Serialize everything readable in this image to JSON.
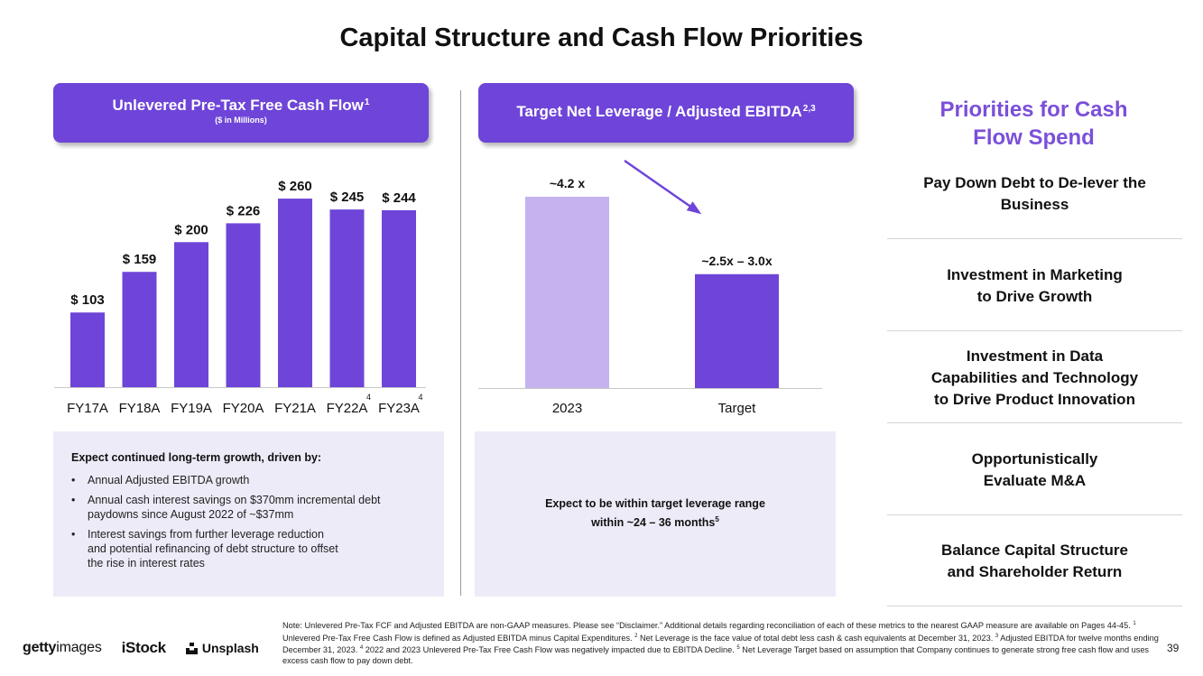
{
  "title": "Capital Structure and Cash Flow Priorities",
  "fcf_panel": {
    "header": "Unlevered Pre-Tax Free Cash Flow",
    "header_sup": "1",
    "subheader": "($ in Millions)"
  },
  "leverage_panel": {
    "header": "Target Net Leverage / Adjusted EBITDA",
    "header_sup": "2,3"
  },
  "chart_data": [
    {
      "type": "bar",
      "title": "Unlevered Pre-Tax Free Cash Flow",
      "subtitle": "($ in Millions)",
      "categories": [
        "FY17A",
        "FY18A",
        "FY19A",
        "FY20A",
        "FY21A",
        "FY22A",
        "FY23A"
      ],
      "category_superscripts": [
        "",
        "",
        "",
        "",
        "",
        "4",
        "4"
      ],
      "values": [
        103,
        159,
        200,
        226,
        260,
        245,
        244
      ],
      "data_labels": [
        "$ 103",
        "$ 159",
        "$ 200",
        "$ 226",
        "$ 260",
        "$ 245",
        "$ 244"
      ],
      "ylim": [
        0,
        280
      ],
      "color": "#6e45d8",
      "grid": false
    },
    {
      "type": "bar",
      "title": "Target Net Leverage / Adjusted EBITDA",
      "categories": [
        "2023",
        "Target"
      ],
      "values": [
        4.2,
        2.5
      ],
      "data_labels": [
        "~4.2 x",
        "~2.5x – 3.0x"
      ],
      "ylim": [
        0,
        5.15
      ],
      "colors": [
        "#c4b3ef",
        "#6e45d8"
      ],
      "arrow": "down from 2023 to Target",
      "arrow_color": "#6e45d8",
      "grid": false
    }
  ],
  "growth_box": {
    "title": "Expect continued long-term growth, driven by:",
    "bullet_glyph": "•",
    "items": [
      "Annual Adjusted EBITDA  growth",
      "Annual cash interest savings on $370mm incremental debt\npaydowns since August 2022 of ~$37mm",
      "Interest savings from further leverage reduction\nand potential refinancing of debt structure to offset\nthe rise in interest rates"
    ]
  },
  "leverage_box": {
    "text": "Expect to be within target leverage range\nwithin ~24 – 36 months",
    "sup": "5"
  },
  "priorities": {
    "title": "Priorities for Cash\nFlow Spend",
    "title_color": "#7b4fd9",
    "items": [
      "Pay Down Debt to De-lever the\nBusiness",
      "Investment in Marketing\nto Drive Growth",
      "Investment in Data\nCapabilities and Technology\nto Drive Product Innovation",
      "Opportunistically\nEvaluate M&A",
      "Balance Capital Structure\nand Shareholder Return"
    ]
  },
  "footer": {
    "logo_getty_bold": "getty",
    "logo_getty_light": "images",
    "logo_istock": "iStock",
    "logo_unsplash": "Unsplash",
    "page_number": "39",
    "note_p1": "Note: Unlevered Pre-Tax FCF and Adjusted EBITDA are non-GAAP measures. Please see “Disclaimer.” Additional details regarding reconciliation of each of these metrics to the nearest GAAP measure are available on Pages 44-45. ",
    "sup1": "1",
    "note_p2": " Unlevered Pre-Tax Free Cash Flow is defined as Adjusted EBITDA minus Capital Expenditures. ",
    "sup2": "2",
    "note_p3": " Net Leverage is the face value of total debt less cash & cash equivalents at December 31, 2023. ",
    "sup3": "3",
    "note_p4": " Adjusted EBITDA for twelve months ending December 31, 2023. ",
    "sup4": "4",
    "note_p5": " 2022 and 2023 Unlevered Pre-Tax Free Cash Flow was negatively impacted due to EBITDA Decline. ",
    "sup5": "5",
    "note_p6": " Net Leverage Target based on assumption that Company continues to generate strong free cash flow and uses excess cash flow to pay down debt."
  }
}
